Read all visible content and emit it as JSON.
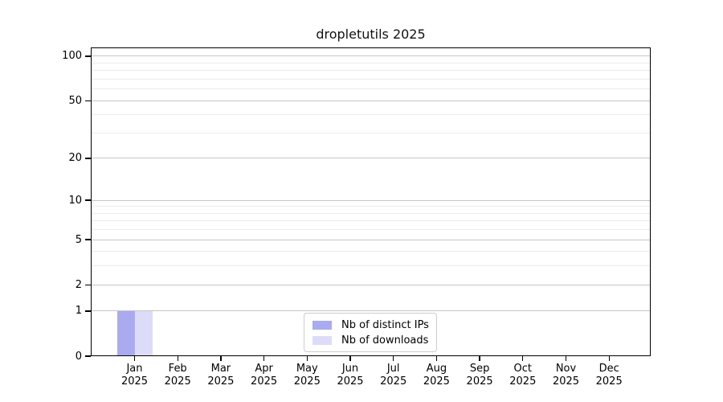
{
  "figure": {
    "background": "#ffffff"
  },
  "chart_data": {
    "type": "bar",
    "title": "dropletutils 2025",
    "categories": [
      "Jan",
      "Feb",
      "Mar",
      "Apr",
      "May",
      "Jun",
      "Jul",
      "Aug",
      "Sep",
      "Oct",
      "Nov",
      "Dec"
    ],
    "category_year": "2025",
    "series": [
      {
        "name": "Nb of distinct IPs",
        "color": "#aaaaf0",
        "values": [
          1,
          0,
          0,
          0,
          0,
          0,
          0,
          0,
          0,
          0,
          0,
          0
        ]
      },
      {
        "name": "Nb of downloads",
        "color": "#dcdcf8",
        "values": [
          1,
          0,
          0,
          0,
          0,
          0,
          0,
          0,
          0,
          0,
          0,
          0
        ]
      }
    ],
    "xlabel": "",
    "ylabel": "",
    "yscale": "log1p",
    "ylim": [
      0,
      115
    ],
    "y_major_ticks": [
      0,
      1,
      2,
      5,
      10,
      20,
      50,
      100
    ],
    "y_minor_gridlines": [
      3,
      4,
      6,
      7,
      8,
      9,
      30,
      40,
      60,
      70,
      80,
      90
    ],
    "grid": "horizontal",
    "legend": {
      "position": "bottom-center",
      "entries": [
        "Nb of distinct IPs",
        "Nb of downloads"
      ]
    },
    "colors": {
      "axis": "#000000",
      "grid_major": "#c6c6c6",
      "grid_minor": "#ececec",
      "legend_border": "#cccccc"
    }
  }
}
